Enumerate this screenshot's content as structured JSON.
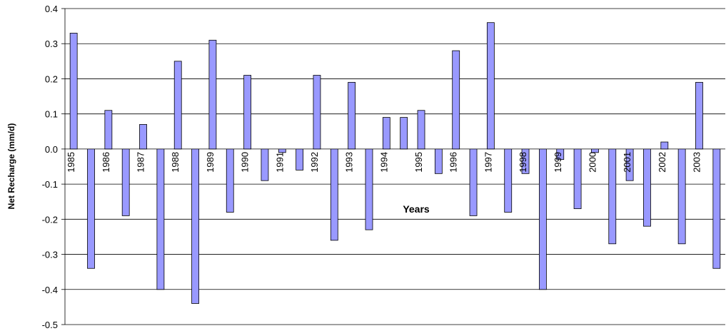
{
  "chart_data": {
    "type": "bar",
    "y_label": "Net Recharge (mm/d)",
    "x_label": "Years",
    "categories": [
      "1985",
      null,
      "1986",
      null,
      "1987",
      null,
      "1988",
      null,
      "1989",
      null,
      "1990",
      null,
      "1991",
      null,
      "1992",
      null,
      "1993",
      null,
      "1994",
      null,
      "1995",
      null,
      "1996",
      null,
      "1997",
      null,
      "1998",
      null,
      "1999",
      null,
      "2000",
      null,
      "2001",
      null,
      "2002",
      null,
      "2003",
      null
    ],
    "values": [
      0.33,
      -0.34,
      0.11,
      -0.19,
      0.07,
      -0.4,
      0.25,
      -0.44,
      0.31,
      -0.18,
      0.21,
      -0.09,
      -0.01,
      -0.06,
      0.21,
      -0.26,
      0.19,
      -0.23,
      0.09,
      0.09,
      0.11,
      -0.07,
      0.28,
      -0.19,
      0.36,
      -0.18,
      -0.07,
      -0.4,
      -0.03,
      -0.17,
      -0.01,
      -0.27,
      -0.09,
      -0.22,
      0.02,
      -0.27,
      0.19,
      -0.34
    ],
    "color": "#9999ff",
    "ylim": [
      -0.5,
      0.4
    ],
    "yticks": [
      -0.5,
      -0.4,
      -0.3,
      -0.2,
      -0.1,
      {
        "value": 0,
        "label": "0.0"
      },
      0.1,
      0.2,
      0.3,
      0.4
    ],
    "grid": true
  }
}
